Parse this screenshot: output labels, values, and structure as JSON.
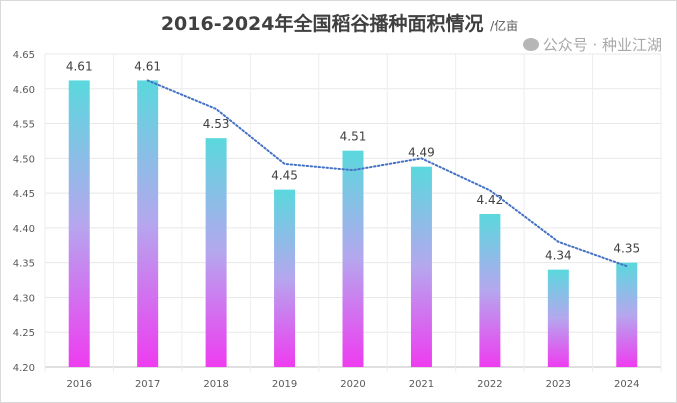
{
  "chart_data": {
    "type": "bar",
    "title": "2016-2024年全国稻谷播种面积情况",
    "unit": "/亿亩",
    "categories": [
      "2016",
      "2017",
      "2018",
      "2019",
      "2020",
      "2021",
      "2022",
      "2023",
      "2024"
    ],
    "values": [
      4.612,
      4.612,
      4.529,
      4.455,
      4.511,
      4.488,
      4.42,
      4.34,
      4.35
    ],
    "labels": [
      "4.61",
      "4.61",
      "4.53",
      "4.45",
      "4.51",
      "4.49",
      "4.42",
      "4.34",
      "4.35"
    ],
    "trendline": {
      "type": "moving-average-2",
      "values": [
        null,
        4.612,
        4.571,
        4.492,
        4.483,
        4.5,
        4.454,
        4.38,
        4.345
      ],
      "color": "#4472c4"
    },
    "ylim": [
      4.2,
      4.65
    ],
    "yticks": [
      "4.20",
      "4.25",
      "4.30",
      "4.35",
      "4.40",
      "4.45",
      "4.50",
      "4.55",
      "4.60",
      "4.65"
    ],
    "grid": true,
    "gradient": {
      "top": "#5ad8dd",
      "bottom": "#ee3cf0"
    },
    "xlabel": "",
    "ylabel": ""
  },
  "watermark": "公众号 · 种业江湖"
}
